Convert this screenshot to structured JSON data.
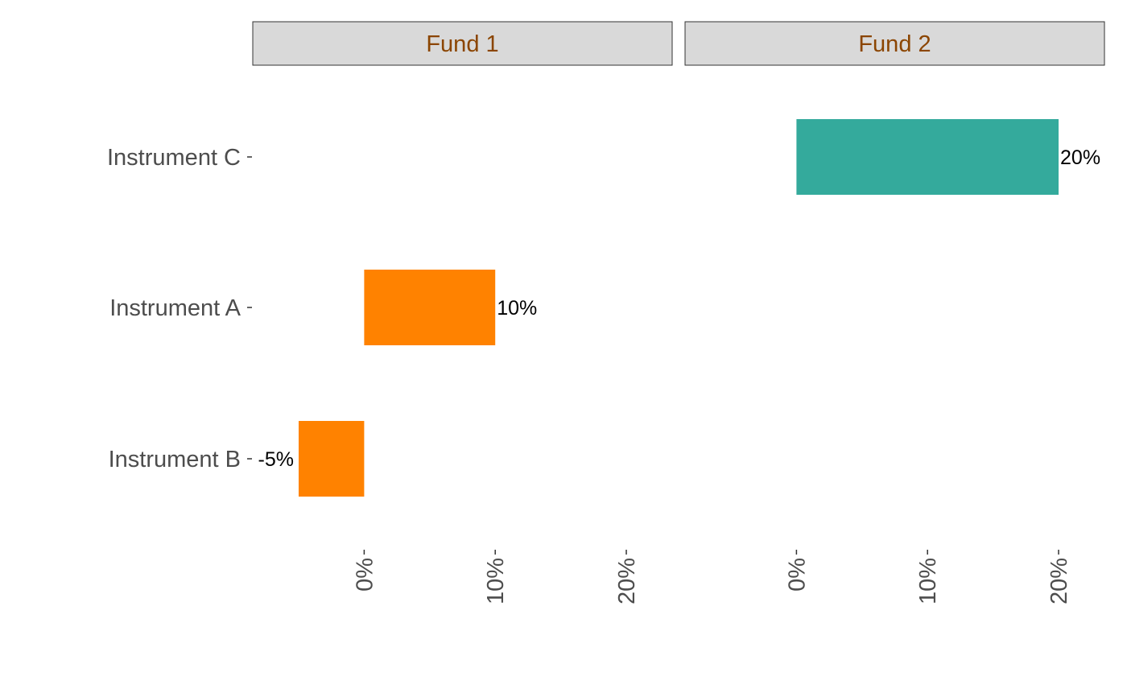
{
  "chart_data": {
    "type": "bar",
    "orientation": "horizontal",
    "facets": [
      "Fund 1",
      "Fund 2"
    ],
    "categories": [
      "Instrument C",
      "Instrument A",
      "Instrument B"
    ],
    "xlim": [
      -0.085,
      0.235
    ],
    "x_ticks": [
      0,
      0.1,
      0.2
    ],
    "x_tick_labels": [
      "0%",
      "10%",
      "20%"
    ],
    "bars": [
      {
        "facet": "Fund 1",
        "category": "Instrument A",
        "value": 0.1,
        "label": "10%",
        "color": "#ff8200"
      },
      {
        "facet": "Fund 1",
        "category": "Instrument B",
        "value": -0.05,
        "label": "-5%",
        "color": "#ff8200"
      },
      {
        "facet": "Fund 2",
        "category": "Instrument C",
        "value": 0.2,
        "label": "20%",
        "color": "#34aa9c"
      }
    ],
    "strip_fill": "#d9d9d9",
    "strip_text_color": "#8b4500",
    "grid": false,
    "legend": "none",
    "title": "",
    "xlabel": "",
    "ylabel": ""
  }
}
